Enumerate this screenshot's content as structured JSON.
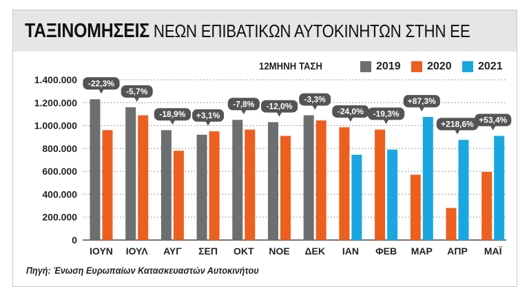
{
  "header": {
    "title_bold": "ΤΑΞΙΝΟΜΗΣΕΙΣ",
    "title_rest": " ΝΕΩΝ ΕΠΙΒΑΤΙΚΩΝ ΑΥΤΟΚΙΝΗΤΩΝ ΣΤΗΝ ΕΕ"
  },
  "source": "Πηγή: Ένωση Ευρωπαίων Κατασκευαστών Αυτοκινήτου",
  "colors": {
    "series_2019": "#6d6e70",
    "series_2020": "#ec5f1f",
    "series_2021": "#1aa7e0",
    "badge": "#535456",
    "title_bar": "#e6e6e6"
  },
  "chart_data": {
    "type": "bar",
    "title": "ΤΑΞΙΝΟΜΗΣΕΙΣ ΝΕΩΝ ΕΠΙΒΑΤΙΚΩΝ ΑΥΤΟΚΙΝΗΤΩΝ ΣΤΗΝ ΕΕ",
    "subtitle": "12ΜΗΝΗ ΤΑΣΗ",
    "xlabel": "",
    "ylabel": "",
    "ylim": [
      0,
      1400000
    ],
    "yticks": [
      0,
      200000,
      400000,
      600000,
      800000,
      1000000,
      1200000,
      1400000
    ],
    "ytick_labels": [
      "0",
      "200.000",
      "400.000",
      "600.000",
      "800.000",
      "1.000.000",
      "1.200.000",
      "1.400.000"
    ],
    "legend": [
      "2019",
      "2020",
      "2021"
    ],
    "legend_position": "top-right",
    "grid": "horizontal dotted",
    "categories": [
      "ΙΟΥΝ",
      "ΙΟΥΛ",
      "ΑΥΓ",
      "ΣΕΠ",
      "ΟΚΤ",
      "ΝΟΕ",
      "ΔΕΚ",
      "ΙΑΝ",
      "ΦΕΒ",
      "ΜΑΡ",
      "ΑΠΡ",
      "ΜΑΪ"
    ],
    "series": [
      {
        "name": "2019",
        "values": [
          1230000,
          1160000,
          960000,
          920000,
          1050000,
          1030000,
          1090000,
          null,
          null,
          null,
          null,
          null
        ]
      },
      {
        "name": "2020",
        "values": [
          960000,
          1090000,
          780000,
          950000,
          965000,
          910000,
          1045000,
          985000,
          965000,
          570000,
          280000,
          595000
        ]
      },
      {
        "name": "2021",
        "values": [
          null,
          null,
          null,
          null,
          null,
          null,
          null,
          745000,
          790000,
          1075000,
          875000,
          910000
        ]
      }
    ],
    "annotations": [
      "-22,3%",
      "-5,7%",
      "-18,9%",
      "+3,1%",
      "-7,8%",
      "-12,0%",
      "-3,3%",
      "-24,0%",
      "-19,3%",
      "+87,3%",
      "+218,6%",
      "+53,4%"
    ]
  }
}
